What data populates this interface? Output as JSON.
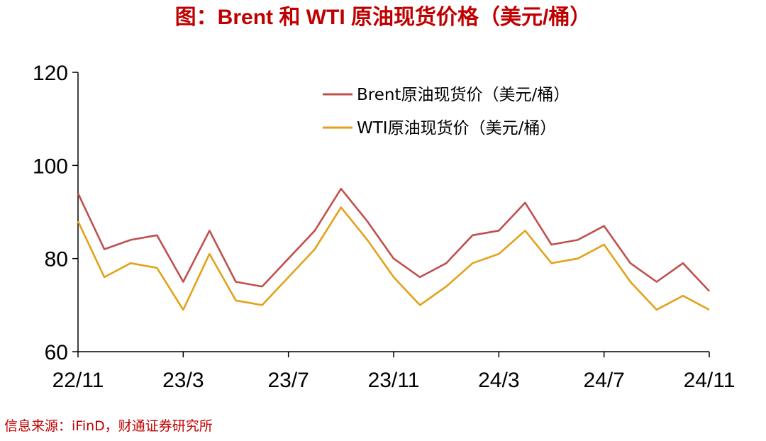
{
  "title": "图：Brent 和 WTI 原油现货价格（美元/桶）",
  "source": "信息来源：iFinD，财通证券研究所",
  "colors": {
    "brent": "#c0504d",
    "wti": "#e3a21a",
    "title": "#c00000",
    "axis": "#000000"
  },
  "chart_data": {
    "type": "line",
    "title": "图：Brent 和 WTI 原油现货价格（美元/桶）",
    "xlabel": "",
    "ylabel": "",
    "ylim": [
      60,
      120
    ],
    "yticks": [
      "120",
      "100",
      "80",
      "60"
    ],
    "xticks": [
      "22/11",
      "23/3",
      "23/7",
      "23/11",
      "24/3",
      "24/7",
      "24/11"
    ],
    "grid": false,
    "legend": "top-right",
    "series": [
      {
        "name": "Brent原油现货价（美元/桶）",
        "x": [
          "22/11",
          "22/12",
          "23/1",
          "23/2",
          "23/3",
          "23/4",
          "23/5",
          "23/6",
          "23/7",
          "23/8",
          "23/9",
          "23/10",
          "23/11",
          "23/12",
          "24/1",
          "24/2",
          "24/3",
          "24/4",
          "24/5",
          "24/6",
          "24/7",
          "24/8",
          "24/9",
          "24/10",
          "24/11"
        ],
        "values": [
          94,
          82,
          84,
          85,
          75,
          86,
          75,
          74,
          80,
          86,
          95,
          88,
          80,
          76,
          79,
          85,
          86,
          92,
          83,
          84,
          87,
          79,
          75,
          79,
          73
        ]
      },
      {
        "name": "WTI原油现货价（美元/桶）",
        "x": [
          "22/11",
          "22/12",
          "23/1",
          "23/2",
          "23/3",
          "23/4",
          "23/5",
          "23/6",
          "23/7",
          "23/8",
          "23/9",
          "23/10",
          "23/11",
          "23/12",
          "24/1",
          "24/2",
          "24/3",
          "24/4",
          "24/5",
          "24/6",
          "24/7",
          "24/8",
          "24/9",
          "24/10",
          "24/11"
        ],
        "values": [
          88,
          76,
          79,
          78,
          69,
          81,
          71,
          70,
          76,
          82,
          91,
          84,
          76,
          70,
          74,
          79,
          81,
          86,
          79,
          80,
          83,
          75,
          69,
          72,
          69
        ]
      }
    ]
  }
}
